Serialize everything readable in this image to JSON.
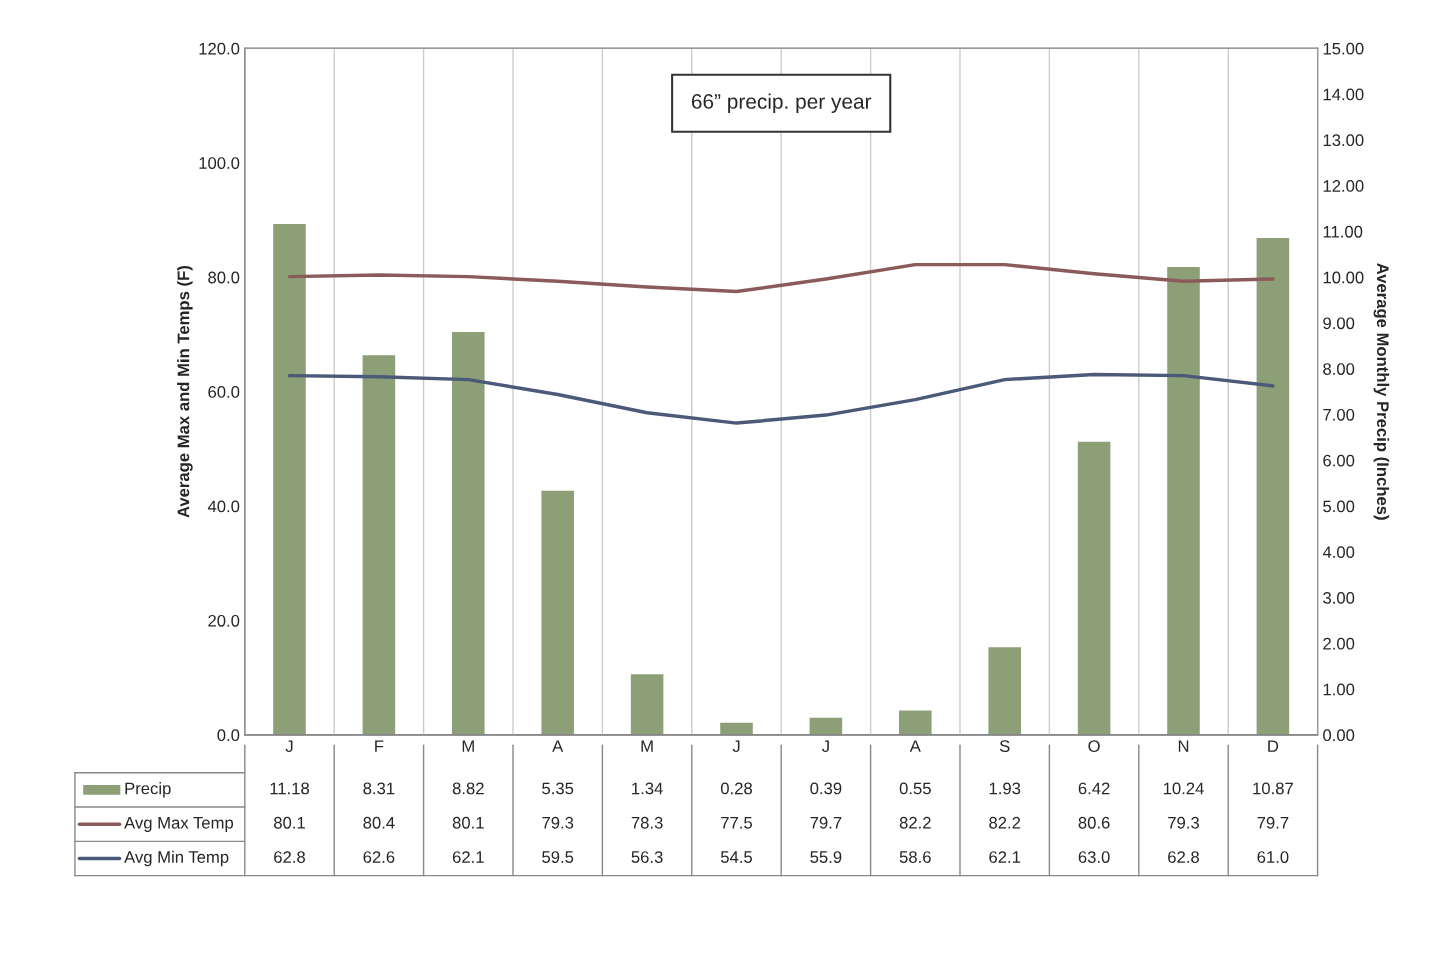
{
  "chart_data": {
    "type": "bar",
    "categories": [
      "J",
      "F",
      "M",
      "A",
      "M",
      "J",
      "J",
      "A",
      "S",
      "O",
      "N",
      "D"
    ],
    "series": [
      {
        "name": "Precip",
        "axis": "y2",
        "color": "#8d9f77",
        "values": [
          11.18,
          8.31,
          8.82,
          5.35,
          1.34,
          0.28,
          0.39,
          0.55,
          1.93,
          6.42,
          10.24,
          10.87
        ]
      },
      {
        "name": "Avg Max Temp",
        "type": "line",
        "color": "#8b5a5a",
        "values": [
          80.1,
          80.4,
          80.1,
          79.3,
          78.3,
          77.5,
          79.7,
          82.2,
          82.2,
          80.6,
          79.3,
          79.7
        ]
      },
      {
        "name": "Avg Min Temp",
        "type": "line",
        "color": "#4a5a78",
        "values": [
          62.8,
          62.6,
          62.1,
          59.5,
          56.3,
          54.5,
          55.9,
          58.6,
          62.1,
          63.0,
          62.8,
          61.0
        ],
        "value_labels": [
          "62.8",
          "62.6",
          "62.1",
          "59.5",
          "56.3",
          "54.5",
          "55.9",
          "58.6",
          "62.1",
          "63.0",
          "62.8",
          "61.0"
        ]
      }
    ],
    "ylabel": "Average Max and Min Temps (F)",
    "y2label": "Average Monthly Precip (Inches)",
    "ylim": [
      0,
      120
    ],
    "yticks": [
      {
        "value": 0,
        "label": "0.0"
      },
      {
        "value": 20,
        "label": "20.0"
      },
      {
        "value": 40,
        "label": "40.0"
      },
      {
        "value": 60,
        "label": "60.0"
      },
      {
        "value": 80,
        "label": "80.0"
      },
      {
        "value": 100,
        "label": "100.0"
      },
      {
        "value": 120,
        "label": "120.0"
      }
    ],
    "y2lim": [
      0,
      15
    ],
    "y2ticks": [
      {
        "value": 0,
        "label": "0.00"
      },
      {
        "value": 1,
        "label": "1.00"
      },
      {
        "value": 2,
        "label": "2.00"
      },
      {
        "value": 3,
        "label": "3.00"
      },
      {
        "value": 4,
        "label": "4.00"
      },
      {
        "value": 5,
        "label": "5.00"
      },
      {
        "value": 6,
        "label": "6.00"
      },
      {
        "value": 7,
        "label": "7.00"
      },
      {
        "value": 8,
        "label": "8.00"
      },
      {
        "value": 9,
        "label": "9.00"
      },
      {
        "value": 10,
        "label": "10.00"
      },
      {
        "value": 11,
        "label": "11.00"
      },
      {
        "value": 12,
        "label": "12.00"
      },
      {
        "value": 13,
        "label": "13.00"
      },
      {
        "value": 14,
        "label": "14.00"
      },
      {
        "value": 15,
        "label": "15.00"
      }
    ],
    "annotations": [
      "66” precip. per year"
    ],
    "data_labels": true,
    "grid": "x",
    "legend": "bottom"
  }
}
